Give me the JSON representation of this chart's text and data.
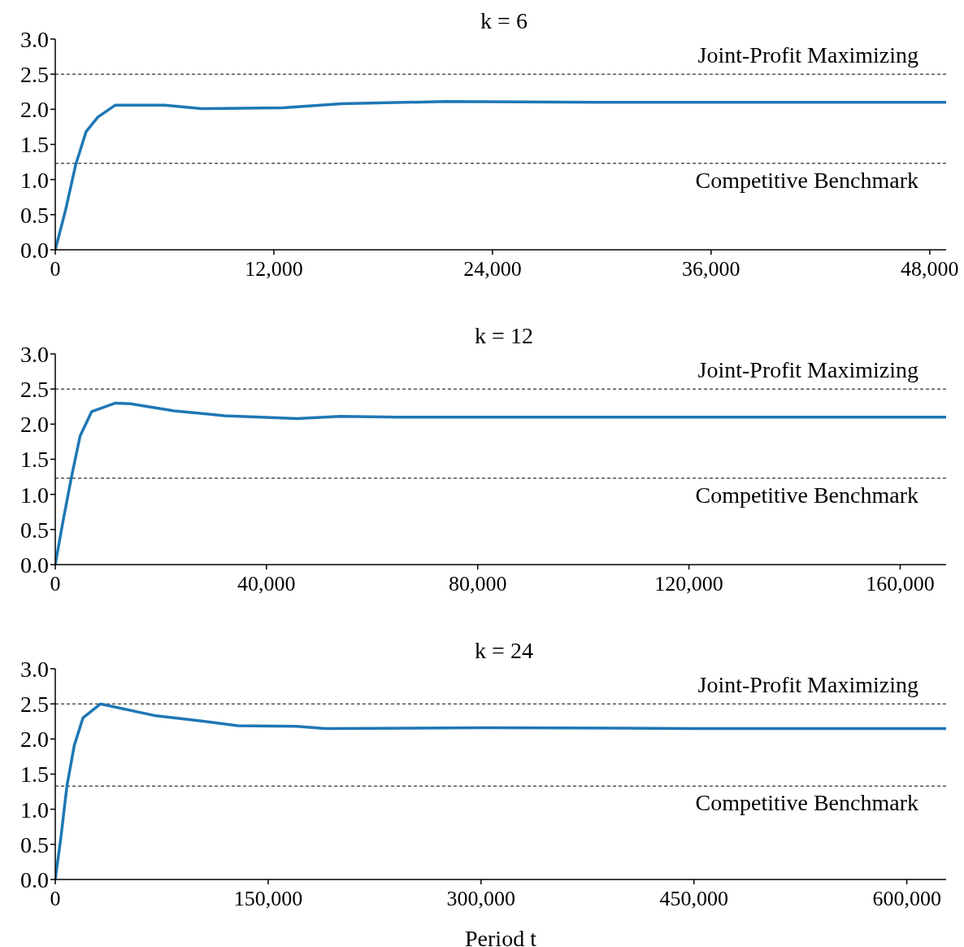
{
  "chart_data": [
    {
      "type": "line",
      "title": "k = 6",
      "x": [
        0,
        560,
        1130,
        1690,
        2340,
        3300,
        6000,
        8000,
        12500,
        15700,
        21400,
        30000,
        40000,
        48900
      ],
      "series": [
        {
          "color": "#1f77b4",
          "values": [
            0,
            0.56,
            1.22,
            1.68,
            1.89,
            2.06,
            2.06,
            2.01,
            2.02,
            2.08,
            2.11,
            2.1,
            2.1,
            2.1
          ]
        }
      ],
      "xlim": [
        0,
        48900
      ],
      "xticks": [
        {
          "value": 0,
          "label": "0"
        },
        {
          "value": 12000,
          "label": "12,000"
        },
        {
          "value": 24000,
          "label": "24,000"
        },
        {
          "value": 36000,
          "label": "36,000"
        },
        {
          "value": 48000,
          "label": "48,000"
        }
      ],
      "ylim": [
        0,
        3
      ],
      "yticks": [
        {
          "value": 0,
          "label": "0.0"
        },
        0.5,
        {
          "value": 1,
          "label": "1.0"
        },
        1.5,
        {
          "value": 2,
          "label": "2.0"
        },
        2.5,
        {
          "value": 3,
          "label": "3.0"
        }
      ],
      "ref_lines": [
        {
          "axis": "y",
          "value": 2.5,
          "label": "Joint-Profit Maximizing",
          "color": "#000000",
          "line_style": "dashed"
        },
        {
          "axis": "y",
          "value": 1.23,
          "label": "Competitive Benchmark",
          "color": "#000000",
          "line_style": "dashed"
        }
      ],
      "grid": false,
      "legend": false,
      "line_style": "solid",
      "marker": "none"
    },
    {
      "type": "line",
      "title": "k = 12",
      "x": [
        0,
        1400,
        3050,
        4700,
        6900,
        11400,
        14200,
        22500,
        32000,
        45800,
        54000,
        65000,
        120000,
        168700
      ],
      "series": [
        {
          "color": "#1f77b4",
          "values": [
            0,
            0.59,
            1.24,
            1.83,
            2.18,
            2.3,
            2.29,
            2.19,
            2.12,
            2.08,
            2.11,
            2.1,
            2.1,
            2.1
          ]
        }
      ],
      "xlim": [
        0,
        168700
      ],
      "xticks": [
        {
          "value": 0,
          "label": "0"
        },
        {
          "value": 40000,
          "label": "40,000"
        },
        {
          "value": 80000,
          "label": "80,000"
        },
        {
          "value": 120000,
          "label": "120,000"
        },
        {
          "value": 160000,
          "label": "160,000"
        }
      ],
      "ylim": [
        0,
        3
      ],
      "yticks": [
        {
          "value": 0,
          "label": "0.0"
        },
        0.5,
        {
          "value": 1,
          "label": "1.0"
        },
        1.5,
        {
          "value": 2,
          "label": "2.0"
        },
        2.5,
        {
          "value": 3,
          "label": "3.0"
        }
      ],
      "ref_lines": [
        {
          "axis": "y",
          "value": 2.5,
          "label": "Joint-Profit Maximizing",
          "color": "#000000",
          "line_style": "dashed"
        },
        {
          "axis": "y",
          "value": 1.23,
          "label": "Competitive Benchmark",
          "color": "#000000",
          "line_style": "dashed"
        }
      ],
      "grid": false,
      "legend": false,
      "line_style": "solid",
      "marker": "none"
    },
    {
      "type": "line",
      "title": "k = 24",
      "xlabel": "Period t",
      "x": [
        0,
        4100,
        8200,
        13400,
        19500,
        31900,
        71000,
        101900,
        128600,
        170000,
        190300,
        303000,
        450000,
        627700
      ],
      "series": [
        {
          "color": "#1f77b4",
          "values": [
            0,
            0.62,
            1.33,
            1.91,
            2.3,
            2.5,
            2.33,
            2.26,
            2.19,
            2.18,
            2.15,
            2.16,
            2.15,
            2.15
          ]
        }
      ],
      "xlim": [
        0,
        627700
      ],
      "xticks": [
        {
          "value": 0,
          "label": "0"
        },
        {
          "value": 150000,
          "label": "150,000"
        },
        {
          "value": 300000,
          "label": "300,000"
        },
        {
          "value": 450000,
          "label": "450,000"
        },
        {
          "value": 600000,
          "label": "600,000"
        }
      ],
      "ylim": [
        0,
        3
      ],
      "yticks": [
        {
          "value": 0,
          "label": "0.0"
        },
        0.5,
        {
          "value": 1,
          "label": "1.0"
        },
        1.5,
        {
          "value": 2,
          "label": "2.0"
        },
        2.5,
        {
          "value": 3,
          "label": "3.0"
        }
      ],
      "ref_lines": [
        {
          "axis": "y",
          "value": 2.5,
          "label": "Joint-Profit Maximizing",
          "color": "#000000",
          "line_style": "dashed"
        },
        {
          "axis": "y",
          "value": 1.33,
          "label": "Competitive Benchmark",
          "color": "#000000",
          "line_style": "dashed"
        }
      ],
      "grid": false,
      "legend": false,
      "line_style": "solid",
      "marker": "none"
    }
  ]
}
